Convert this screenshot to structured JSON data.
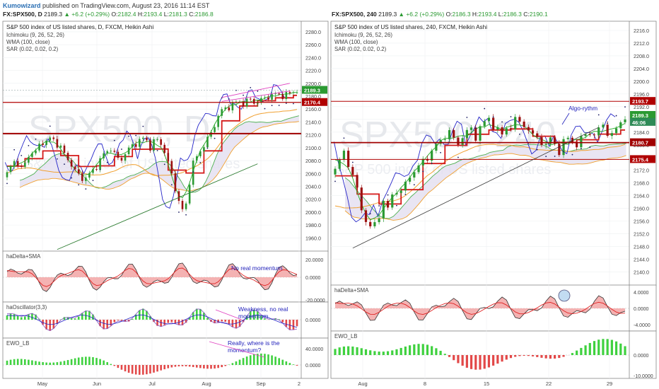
{
  "header": {
    "author": "Kumowizard",
    "published": "published on TradingView.com, August 23, 2016 11:14 EST"
  },
  "colors": {
    "up": "#2b9a32",
    "down": "#9c1010",
    "hist_pos": "#3fd13f",
    "hist_neg": "#e24848",
    "red_fill": "#f2a5a5",
    "cloud": "#e4dff0",
    "blue": "#2424c8",
    "orange": "#f0a030",
    "darkred": "#a00000",
    "annotation": "#2222bb",
    "pink": "#e040c0"
  },
  "left_panel": {
    "header": {
      "symbol": "FX:SPX500, D",
      "price": "2189.3",
      "change": "▲ +6.2 (+0.29%)",
      "o": "2182.4",
      "h": "2193.4",
      "l": "2181.3",
      "c": "2186.8"
    },
    "title": "S&P 500 index of US listed shares, D, FXCM, Heikin Ashi",
    "indicators": [
      "Ichimoku (9, 26, 52, 26)",
      "WMA (100, close)",
      "SAR (0.02, 0.02, 0.2)"
    ],
    "watermark": "SPX500, D",
    "watermark_sub": "S&P 500 index of US listed shares",
    "price_labels": [
      "2189.3",
      "2170.4"
    ],
    "osc1_label": "haDelta+SMA",
    "osc1_ticks": [
      "20.0000",
      "0.0000",
      "-20.0000"
    ],
    "osc1_note": "No real momentum",
    "osc2_label": "haOscillator(3,3)",
    "osc2_ticks": [
      "0.0000"
    ],
    "osc2_note": [
      "Weakness, no real",
      "momentum"
    ],
    "osc3_label": "EWO_LB",
    "osc3_ticks": [
      "40.0000",
      "0.0000"
    ],
    "osc3_note": [
      "Really, where is the",
      "momentum?"
    ],
    "x_ticks": [
      "May",
      "Jun",
      "Jul",
      "Aug",
      "Sep",
      "2"
    ]
  },
  "right_panel": {
    "header": {
      "symbol": "FX:SPX500, 240",
      "price": "2189.3",
      "change": "▲ +6.2 (+0.29%)",
      "o": "2186.3",
      "h": "2193.4",
      "l": "2186.3",
      "c": "2190.1"
    },
    "title": "S&P 500 index of US listed shares, 240, FXCM, Heikin Ashi",
    "indicators": [
      "Ichimoku (9, 26, 52, 26)",
      "WMA (100, close)",
      "SAR (0.02, 0.02, 0.2)"
    ],
    "watermark": "SPX500, 240",
    "watermark_sub": "S&P 500 index of US listed shares",
    "price_labels": [
      "2193.7",
      "2189.3",
      "46:06",
      "2180.7",
      "2175.4"
    ],
    "annotation": "Algo-rythm",
    "osc1_label": "haDelta+SMA",
    "osc1_ticks": [
      "4.0000",
      "0.0000",
      "-4.0000"
    ],
    "osc2_label": "EWO_LB",
    "osc2_ticks": [
      "0.0000",
      "-10.0000"
    ],
    "x_ticks": [
      "Aug",
      "8",
      "15",
      "22",
      "29"
    ]
  },
  "chart_data": [
    {
      "type": "candlestick",
      "title": "S&P 500 index of US listed shares, D, FXCM, Heikin Ashi",
      "ylim": [
        1945,
        2292
      ],
      "y_ticks": [
        1960,
        1980,
        2000,
        2020,
        2040,
        2060,
        2080,
        2100,
        2120,
        2140,
        2160,
        2180,
        2200,
        2220,
        2240,
        2260,
        2280
      ],
      "key_values": {
        "last": 2189.3,
        "red_level": 2170.4,
        "dark_red_level": 2122
      },
      "close_path": [
        2060,
        2070,
        2080,
        2075,
        2065,
        2080,
        2095,
        2090,
        2100,
        2110,
        2108,
        2115,
        2112,
        2105,
        2100,
        2088,
        2080,
        2070,
        2060,
        2055,
        2050,
        2058,
        2063,
        2070,
        2080,
        2090,
        2095,
        2100,
        2088,
        2080,
        2085,
        2095,
        2102,
        2105,
        2110,
        2115,
        2112,
        2100,
        2110,
        2112,
        2105,
        2090,
        2070,
        2050,
        2025,
        2005,
        2000,
        2040,
        2075,
        2085,
        2095,
        2105,
        2115,
        2125,
        2140,
        2155,
        2160,
        2162,
        2165,
        2170,
        2172,
        2168,
        2172,
        2175,
        2170,
        2172,
        2175,
        2178,
        2180,
        2182,
        2184,
        2180,
        2182,
        2184,
        2187,
        2189
      ]
    },
    {
      "type": "candlestick",
      "title": "S&P 500 index of US listed shares, 240, FXCM, Heikin Ashi",
      "ylim": [
        2137,
        2218
      ],
      "y_ticks": [
        2140,
        2144,
        2148,
        2152,
        2156,
        2160,
        2164,
        2168,
        2172,
        2176,
        2180,
        2184,
        2188,
        2192,
        2196,
        2200,
        2204,
        2208,
        2212,
        2216
      ],
      "key_values": {
        "resistance": 2193.7,
        "last": 2189.3,
        "level_mid": 2180.7,
        "level_low": 2175.4
      },
      "close_path": [
        2172,
        2175,
        2178,
        2174,
        2170,
        2166,
        2160,
        2156,
        2154,
        2155,
        2158,
        2162,
        2160,
        2164,
        2166,
        2165,
        2168,
        2170,
        2172,
        2173,
        2175,
        2176,
        2178,
        2180,
        2181,
        2183,
        2184,
        2182,
        2180,
        2183,
        2184,
        2185,
        2182,
        2186,
        2187,
        2188,
        2186,
        2185,
        2183,
        2185,
        2186,
        2188,
        2187,
        2186,
        2185,
        2183,
        2182,
        2181,
        2180,
        2182,
        2180,
        2178,
        2181,
        2182,
        2181,
        2180,
        2182,
        2183,
        2184,
        2183,
        2185,
        2186,
        2184,
        2183,
        2185,
        2187,
        2189
      ]
    }
  ]
}
